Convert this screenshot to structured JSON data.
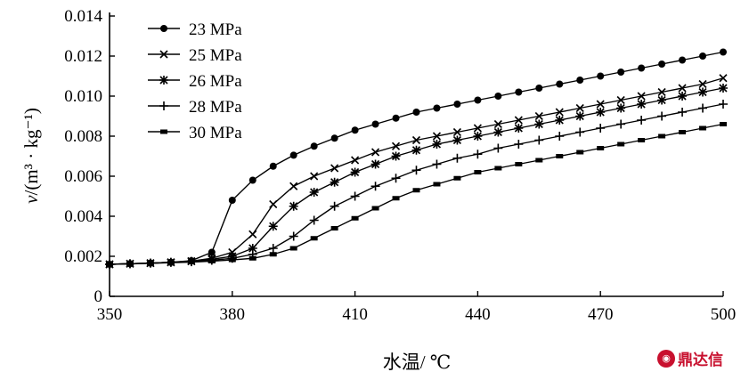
{
  "chart_data": {
    "type": "line",
    "xlabel": "水温/ ℃",
    "ylabel_main": "v",
    "ylabel_unit": "/(m³ · kg⁻¹)",
    "xlim": [
      350,
      500
    ],
    "ylim": [
      0,
      0.014
    ],
    "x_ticks": [
      "350",
      "380",
      "410",
      "440",
      "470",
      "500"
    ],
    "y_ticks": [
      "0",
      "0.002",
      "0.004",
      "0.006",
      "0.008",
      "0.010",
      "0.012",
      "0.014"
    ],
    "legend_position": "top-left",
    "x": [
      350,
      355,
      360,
      365,
      370,
      375,
      380,
      385,
      390,
      395,
      400,
      405,
      410,
      415,
      420,
      425,
      430,
      435,
      440,
      445,
      450,
      455,
      460,
      465,
      470,
      475,
      480,
      485,
      490,
      495,
      500
    ],
    "series": [
      {
        "name": "23 MPa",
        "marker": "circle",
        "values": [
          0.0016,
          0.00163,
          0.00166,
          0.0017,
          0.00178,
          0.0022,
          0.0048,
          0.0058,
          0.0065,
          0.00705,
          0.0075,
          0.0079,
          0.0083,
          0.0086,
          0.0089,
          0.0092,
          0.0094,
          0.0096,
          0.0098,
          0.01,
          0.0102,
          0.0104,
          0.0106,
          0.0108,
          0.011,
          0.0112,
          0.0114,
          0.0116,
          0.0118,
          0.012,
          0.0122
        ]
      },
      {
        "name": "25 MPa",
        "marker": "x",
        "values": [
          0.0016,
          0.00163,
          0.00166,
          0.0017,
          0.00176,
          0.0019,
          0.0022,
          0.0031,
          0.0046,
          0.0055,
          0.006,
          0.0064,
          0.0068,
          0.0072,
          0.0075,
          0.0078,
          0.008,
          0.0082,
          0.0084,
          0.0086,
          0.0088,
          0.009,
          0.0092,
          0.0094,
          0.0096,
          0.0098,
          0.01,
          0.0102,
          0.0104,
          0.0106,
          0.0109
        ]
      },
      {
        "name": "26 MPa",
        "marker": "asterisk",
        "values": [
          0.0016,
          0.00163,
          0.00166,
          0.0017,
          0.00175,
          0.00185,
          0.002,
          0.0024,
          0.0035,
          0.0045,
          0.0052,
          0.0057,
          0.0062,
          0.0066,
          0.007,
          0.0073,
          0.0076,
          0.0078,
          0.008,
          0.0082,
          0.0084,
          0.0086,
          0.0088,
          0.009,
          0.0092,
          0.0094,
          0.0096,
          0.0098,
          0.01,
          0.0102,
          0.0104
        ]
      },
      {
        "name": "28 MPa",
        "marker": "plus",
        "values": [
          0.0016,
          0.00163,
          0.00166,
          0.0017,
          0.00173,
          0.0018,
          0.0019,
          0.0021,
          0.0024,
          0.003,
          0.0038,
          0.0045,
          0.005,
          0.0055,
          0.0059,
          0.0063,
          0.0066,
          0.0069,
          0.0071,
          0.0074,
          0.0076,
          0.0078,
          0.008,
          0.0082,
          0.0084,
          0.0086,
          0.0088,
          0.009,
          0.0092,
          0.0094,
          0.0096
        ]
      },
      {
        "name": "30 MPa",
        "marker": "square",
        "values": [
          0.0016,
          0.00162,
          0.00165,
          0.00168,
          0.00171,
          0.00176,
          0.00182,
          0.0019,
          0.0021,
          0.0024,
          0.0029,
          0.0034,
          0.0039,
          0.0044,
          0.0049,
          0.0053,
          0.0056,
          0.0059,
          0.0062,
          0.0064,
          0.0066,
          0.0068,
          0.007,
          0.0072,
          0.0074,
          0.0076,
          0.0078,
          0.008,
          0.0082,
          0.0084,
          0.0086
        ]
      }
    ]
  },
  "watermark": {
    "text": "鼎达信",
    "icon": "dingdaxin-logo-icon"
  }
}
